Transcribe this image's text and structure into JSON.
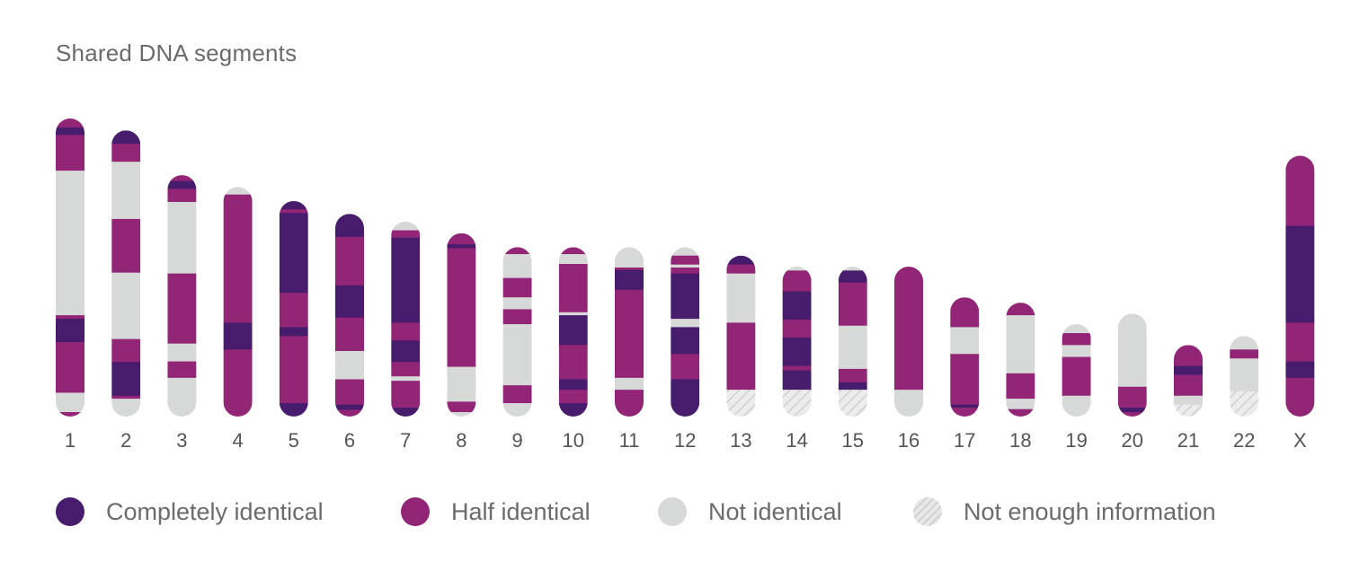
{
  "title": "Shared DNA segments",
  "colors": {
    "completely_identical": "#471C6D",
    "half_identical": "#922575",
    "not_identical": "#D7D8D8",
    "not_enough_information": "hatch-gray"
  },
  "legend": [
    {
      "key": "completely_identical",
      "label": "Completely identical"
    },
    {
      "key": "half_identical",
      "label": "Half identical"
    },
    {
      "key": "not_identical",
      "label": "Not identical"
    },
    {
      "key": "not_enough_information",
      "label": "Not enough information"
    }
  ],
  "chart_data": {
    "type": "bar",
    "title": "Shared DNA segments",
    "xlabel": "",
    "ylabel": "",
    "categories": [
      "1",
      "2",
      "3",
      "4",
      "5",
      "6",
      "7",
      "8",
      "9",
      "10",
      "11",
      "12",
      "13",
      "14",
      "15",
      "16",
      "17",
      "18",
      "19",
      "20",
      "21",
      "22",
      "X"
    ],
    "value_note": "each chromosome listed as segments from top to bottom; start/end as fraction of the longest chromosome length (0 = top of chromosome 1)",
    "segments": [
      [
        [
          "half_identical",
          0,
          0.03
        ],
        [
          "completely_identical",
          0.03,
          0.055
        ],
        [
          "half_identical",
          0.055,
          0.175
        ],
        [
          "not_identical",
          0.175,
          0.66
        ],
        [
          "half_identical",
          0.66,
          0.672
        ],
        [
          "completely_identical",
          0.672,
          0.75
        ],
        [
          "half_identical",
          0.75,
          0.92
        ],
        [
          "not_identical",
          0.92,
          0.985
        ],
        [
          "half_identical",
          0.985,
          1
        ]
      ],
      [
        [
          "completely_identical",
          0.04,
          0.085
        ],
        [
          "half_identical",
          0.085,
          0.145
        ],
        [
          "not_identical",
          0.145,
          0.337
        ],
        [
          "half_identical",
          0.337,
          0.517
        ],
        [
          "not_identical",
          0.517,
          0.74
        ],
        [
          "half_identical",
          0.74,
          0.817
        ],
        [
          "completely_identical",
          0.817,
          0.93
        ],
        [
          "half_identical",
          0.93,
          0.94
        ],
        [
          "not_identical",
          0.94,
          1
        ]
      ],
      [
        [
          "half_identical",
          0.19,
          0.21
        ],
        [
          "completely_identical",
          0.21,
          0.236
        ],
        [
          "half_identical",
          0.236,
          0.28
        ],
        [
          "not_identical",
          0.28,
          0.52
        ],
        [
          "half_identical",
          0.52,
          0.755
        ],
        [
          "not_identical",
          0.755,
          0.815
        ],
        [
          "half_identical",
          0.815,
          0.87
        ],
        [
          "not_identical",
          0.87,
          1
        ]
      ],
      [
        [
          "not_identical",
          0.23,
          0.255
        ],
        [
          "half_identical",
          0.255,
          0.685
        ],
        [
          "completely_identical",
          0.685,
          0.775
        ],
        [
          "half_identical",
          0.775,
          1
        ]
      ],
      [
        [
          "completely_identical",
          0.277,
          0.305
        ],
        [
          "half_identical",
          0.305,
          0.317
        ],
        [
          "completely_identical",
          0.317,
          0.585
        ],
        [
          "half_identical",
          0.585,
          0.7
        ],
        [
          "completely_identical",
          0.7,
          0.73
        ],
        [
          "half_identical",
          0.73,
          0.955
        ],
        [
          "completely_identical",
          0.955,
          1
        ]
      ],
      [
        [
          "completely_identical",
          0.32,
          0.397
        ],
        [
          "half_identical",
          0.397,
          0.56
        ],
        [
          "completely_identical",
          0.56,
          0.668
        ],
        [
          "half_identical",
          0.668,
          0.78
        ],
        [
          "not_identical",
          0.78,
          0.875
        ],
        [
          "half_identical",
          0.875,
          0.96
        ],
        [
          "completely_identical",
          0.96,
          0.977
        ],
        [
          "half_identical",
          0.977,
          1
        ]
      ],
      [
        [
          "not_identical",
          0.346,
          0.375
        ],
        [
          "half_identical",
          0.375,
          0.4
        ],
        [
          "completely_identical",
          0.4,
          0.685
        ],
        [
          "half_identical",
          0.685,
          0.745
        ],
        [
          "completely_identical",
          0.745,
          0.817
        ],
        [
          "half_identical",
          0.817,
          0.865
        ],
        [
          "not_identical",
          0.865,
          0.88
        ],
        [
          "half_identical",
          0.88,
          0.97
        ],
        [
          "completely_identical",
          0.97,
          1
        ]
      ],
      [
        [
          "half_identical",
          0.385,
          0.422
        ],
        [
          "completely_identical",
          0.422,
          0.435
        ],
        [
          "half_identical",
          0.435,
          0.833
        ],
        [
          "not_identical",
          0.833,
          0.95
        ],
        [
          "half_identical",
          0.95,
          0.985
        ],
        [
          "not_identical",
          0.985,
          1
        ]
      ],
      [
        [
          "half_identical",
          0.432,
          0.455
        ],
        [
          "not_identical",
          0.455,
          0.535
        ],
        [
          "half_identical",
          0.535,
          0.6
        ],
        [
          "not_identical",
          0.6,
          0.64
        ],
        [
          "half_identical",
          0.64,
          0.69
        ],
        [
          "not_identical",
          0.69,
          0.895
        ],
        [
          "half_identical",
          0.895,
          0.955
        ],
        [
          "not_identical",
          0.955,
          1
        ]
      ],
      [
        [
          "half_identical",
          0.432,
          0.455
        ],
        [
          "not_identical",
          0.455,
          0.488
        ],
        [
          "half_identical",
          0.488,
          0.65
        ],
        [
          "not_identical",
          0.65,
          0.66
        ],
        [
          "completely_identical",
          0.66,
          0.76
        ],
        [
          "half_identical",
          0.76,
          0.875
        ],
        [
          "completely_identical",
          0.875,
          0.91
        ],
        [
          "half_identical",
          0.91,
          0.955
        ],
        [
          "completely_identical",
          0.955,
          1
        ]
      ],
      [
        [
          "not_identical",
          0.432,
          0.5
        ],
        [
          "half_identical",
          0.5,
          0.508
        ],
        [
          "completely_identical",
          0.508,
          0.575
        ],
        [
          "half_identical",
          0.575,
          0.87
        ],
        [
          "not_identical",
          0.87,
          0.91
        ],
        [
          "half_identical",
          0.91,
          1
        ]
      ],
      [
        [
          "not_identical",
          0.432,
          0.46
        ],
        [
          "half_identical",
          0.46,
          0.49
        ],
        [
          "not_identical",
          0.49,
          0.5
        ],
        [
          "half_identical",
          0.5,
          0.52
        ],
        [
          "completely_identical",
          0.52,
          0.672
        ],
        [
          "not_identical",
          0.672,
          0.7
        ],
        [
          "completely_identical",
          0.7,
          0.79
        ],
        [
          "half_identical",
          0.79,
          0.875
        ],
        [
          "completely_identical",
          0.875,
          1
        ]
      ],
      [
        [
          "completely_identical",
          0.46,
          0.49
        ],
        [
          "half_identical",
          0.49,
          0.52
        ],
        [
          "not_identical",
          0.52,
          0.685
        ],
        [
          "half_identical",
          0.685,
          0.91
        ],
        [
          "not_enough_information",
          0.91,
          1
        ]
      ],
      [
        [
          "not_identical",
          0.497,
          0.51
        ],
        [
          "half_identical",
          0.51,
          0.58
        ],
        [
          "completely_identical",
          0.58,
          0.675
        ],
        [
          "half_identical",
          0.675,
          0.735
        ],
        [
          "completely_identical",
          0.735,
          0.83
        ],
        [
          "half_identical",
          0.83,
          0.845
        ],
        [
          "completely_identical",
          0.845,
          0.91
        ],
        [
          "not_enough_information",
          0.91,
          1
        ]
      ],
      [
        [
          "not_identical",
          0.497,
          0.51
        ],
        [
          "completely_identical",
          0.51,
          0.55
        ],
        [
          "half_identical",
          0.55,
          0.695
        ],
        [
          "not_identical",
          0.695,
          0.84
        ],
        [
          "half_identical",
          0.84,
          0.885
        ],
        [
          "completely_identical",
          0.885,
          0.91
        ],
        [
          "not_enough_information",
          0.91,
          1
        ]
      ],
      [
        [
          "half_identical",
          0.497,
          0.91
        ],
        [
          "not_identical",
          0.91,
          1
        ]
      ],
      [
        [
          "half_identical",
          0.6,
          0.7
        ],
        [
          "not_identical",
          0.7,
          0.79
        ],
        [
          "half_identical",
          0.79,
          0.96
        ],
        [
          "completely_identical",
          0.96,
          0.97
        ],
        [
          "half_identical",
          0.97,
          1
        ]
      ],
      [
        [
          "half_identical",
          0.618,
          0.66
        ],
        [
          "not_identical",
          0.66,
          0.855
        ],
        [
          "half_identical",
          0.855,
          0.94
        ],
        [
          "not_identical",
          0.94,
          0.975
        ],
        [
          "half_identical",
          0.975,
          1
        ]
      ],
      [
        [
          "not_identical",
          0.69,
          0.72
        ],
        [
          "half_identical",
          0.72,
          0.76
        ],
        [
          "not_identical",
          0.76,
          0.8
        ],
        [
          "half_identical",
          0.8,
          0.93
        ],
        [
          "not_identical",
          0.93,
          1
        ]
      ],
      [
        [
          "not_identical",
          0.655,
          0.9
        ],
        [
          "half_identical",
          0.9,
          0.97
        ],
        [
          "completely_identical",
          0.97,
          0.985
        ],
        [
          "half_identical",
          0.985,
          1
        ]
      ],
      [
        [
          "half_identical",
          0.76,
          0.83
        ],
        [
          "completely_identical",
          0.83,
          0.86
        ],
        [
          "half_identical",
          0.86,
          0.93
        ],
        [
          "not_identical",
          0.93,
          0.96
        ],
        [
          "not_enough_information",
          0.96,
          1
        ]
      ],
      [
        [
          "not_identical",
          0.73,
          0.775
        ],
        [
          "half_identical",
          0.775,
          0.805
        ],
        [
          "not_identical",
          0.805,
          0.915
        ],
        [
          "not_enough_information",
          0.915,
          1
        ]
      ],
      [
        [
          "half_identical",
          0.125,
          0.36
        ],
        [
          "completely_identical",
          0.36,
          0.685
        ],
        [
          "half_identical",
          0.685,
          0.815
        ],
        [
          "completely_identical",
          0.815,
          0.87
        ],
        [
          "half_identical",
          0.87,
          1
        ]
      ]
    ]
  }
}
